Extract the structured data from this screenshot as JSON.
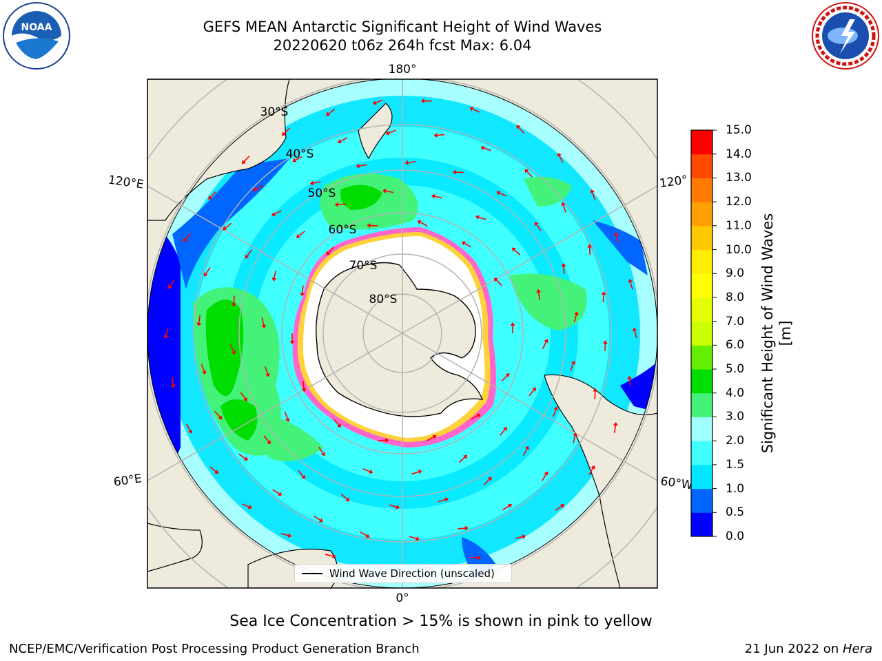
{
  "header": {
    "title": "GEFS MEAN Antarctic Significant Height of Wind Waves",
    "subtitle": "20220620 t06z 264h fcst   Max: 6.04"
  },
  "logos": {
    "left": "NOAA",
    "right": "NATIONAL WEATHER SERVICE"
  },
  "map": {
    "projection": "south-polar-stereographic",
    "longitude_labels": {
      "top": "180°",
      "bottom": "0°",
      "upper_left": "120°E",
      "lower_left": "60°E",
      "upper_right": "120°",
      "lower_right": "60°W"
    },
    "latitude_labels": [
      "30°S",
      "40°S",
      "50°S",
      "60°S",
      "70°S",
      "80°S"
    ],
    "legend_label": "Wind Wave Direction (unscaled)",
    "arrow_color": "#ff0000"
  },
  "colorbar": {
    "label": "Significant Height of Wind Waves [m]",
    "ticks": [
      "0.0",
      "0.5",
      "1.0",
      "1.5",
      "2.0",
      "3.0",
      "4.0",
      "5.0",
      "6.0",
      "7.0",
      "8.0",
      "9.0",
      "10.0",
      "11.0",
      "12.0",
      "13.0",
      "14.0",
      "15.0"
    ],
    "colors": [
      "#0000ff",
      "#0066ff",
      "#00e6ff",
      "#40ffff",
      "#a0ffff",
      "#44f27a",
      "#00dd00",
      "#66ee00",
      "#ccff00",
      "#e6ff00",
      "#ffff00",
      "#ffee00",
      "#ffc800",
      "#ffa000",
      "#ff7a00",
      "#ff4a00",
      "#ff0000"
    ]
  },
  "footer": {
    "note": "Sea Ice Concentration > 15% is shown in pink to yellow",
    "left": "NCEP/EMC/Verification Post Processing Product Generation Branch",
    "right_date": "21 Jun 2022 on ",
    "right_host": "Hera"
  }
}
